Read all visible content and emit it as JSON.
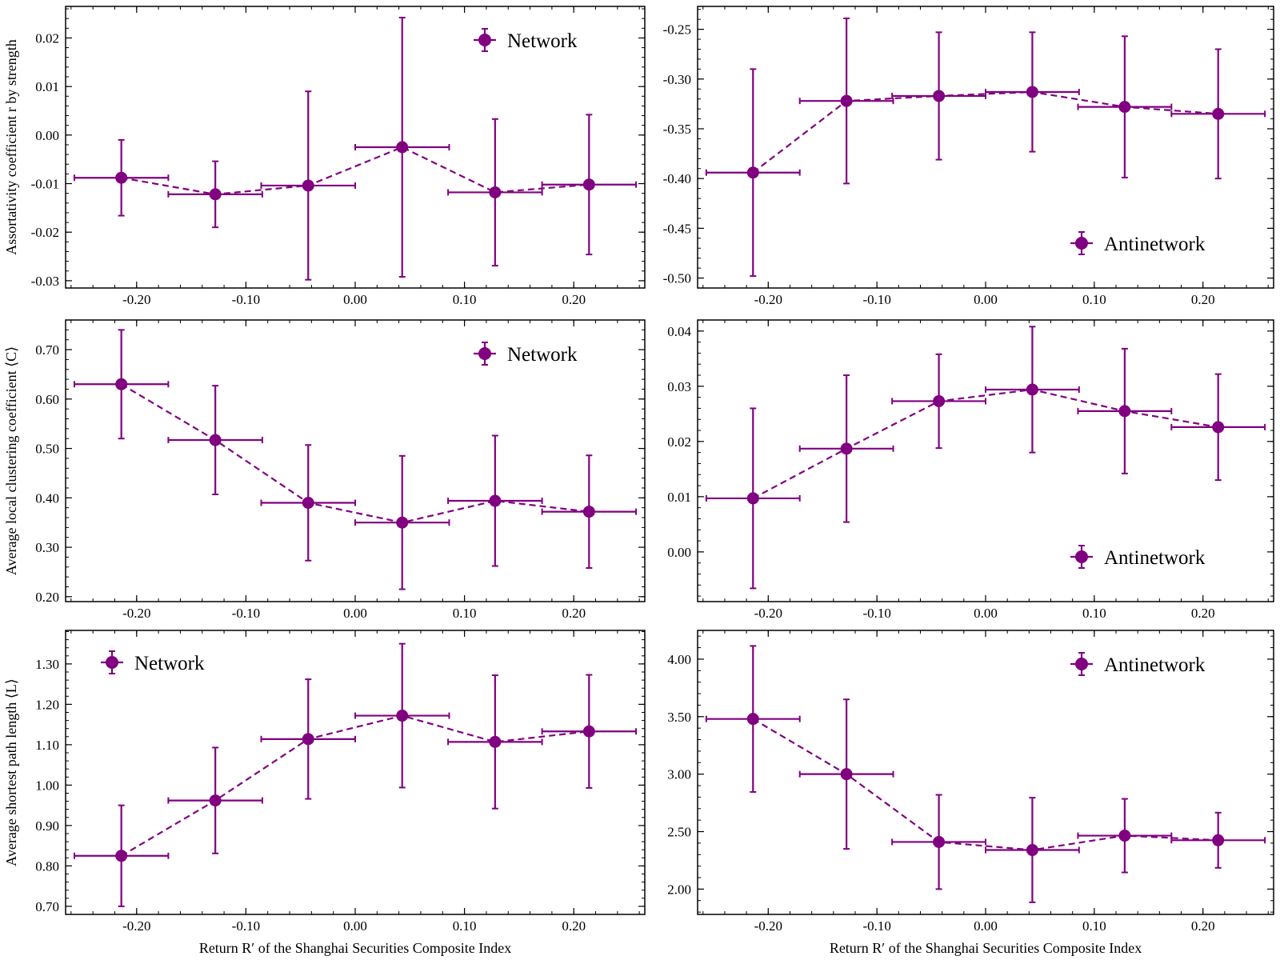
{
  "figure": {
    "series_color": "#800080",
    "shared_xlabel": "Return R′ of the Shanghai Securities Composite Index"
  },
  "chart_data": [
    {
      "type": "errorbar-line",
      "panel": "top-left",
      "ylabel": "Assortativity coefficient r by strength",
      "xlabel": "",
      "legend": "Network",
      "legend_position": "top-right",
      "xlim": [
        -0.265,
        0.265
      ],
      "ylim": [
        -0.0315,
        0.0265
      ],
      "xticks": [
        -0.2,
        -0.1,
        0.0,
        0.1,
        0.2
      ],
      "xtick_labels": [
        "-0.20",
        "-0.10",
        "0.00",
        "0.10",
        "0.20"
      ],
      "yticks": [
        -0.03,
        -0.02,
        -0.01,
        0.0,
        0.01,
        0.02
      ],
      "ytick_labels": [
        "-0.03",
        "-0.02",
        "-0.01",
        "0.00",
        "0.01",
        "0.02"
      ],
      "x": [
        -0.214,
        -0.128,
        -0.043,
        0.043,
        0.128,
        0.214
      ],
      "y": [
        -0.0088,
        -0.0122,
        -0.0104,
        -0.0025,
        -0.0118,
        -0.0102
      ],
      "xerr": [
        0.043,
        0.043,
        0.043,
        0.043,
        0.043,
        0.043
      ],
      "yerr_low": [
        0.0078,
        0.0068,
        0.0194,
        0.0267,
        0.0151,
        0.0144
      ],
      "yerr_high": [
        0.0078,
        0.0068,
        0.0194,
        0.0267,
        0.0151,
        0.0144
      ]
    },
    {
      "type": "errorbar-line",
      "panel": "top-right",
      "ylabel": "",
      "xlabel": "",
      "legend": "Antinetwork",
      "legend_position": "bottom-right",
      "xlim": [
        -0.265,
        0.265
      ],
      "ylim": [
        -0.51,
        -0.227
      ],
      "xticks": [
        -0.2,
        -0.1,
        0.0,
        0.1,
        0.2
      ],
      "xtick_labels": [
        "-0.20",
        "-0.10",
        "0.00",
        "0.10",
        "0.20"
      ],
      "yticks": [
        -0.5,
        -0.45,
        -0.4,
        -0.35,
        -0.3,
        -0.25
      ],
      "ytick_labels": [
        "-0.50",
        "-0.45",
        "-0.40",
        "-0.35",
        "-0.30",
        "-0.25"
      ],
      "x": [
        -0.214,
        -0.128,
        -0.043,
        0.043,
        0.128,
        0.214
      ],
      "y": [
        -0.394,
        -0.322,
        -0.317,
        -0.313,
        -0.328,
        -0.335
      ],
      "xerr": [
        0.043,
        0.043,
        0.043,
        0.043,
        0.043,
        0.043
      ],
      "yerr_low": [
        0.104,
        0.083,
        0.064,
        0.06,
        0.071,
        0.065
      ],
      "yerr_high": [
        0.104,
        0.083,
        0.064,
        0.06,
        0.071,
        0.065
      ]
    },
    {
      "type": "errorbar-line",
      "panel": "middle-left",
      "ylabel": "Average local clustering coefficient ⟨C⟩",
      "xlabel": "",
      "legend": "Network",
      "legend_position": "top-right",
      "xlim": [
        -0.265,
        0.265
      ],
      "ylim": [
        0.19,
        0.76
      ],
      "xticks": [
        -0.2,
        -0.1,
        0.0,
        0.1,
        0.2
      ],
      "xtick_labels": [
        "-0.20",
        "-0.10",
        "0.00",
        "0.10",
        "0.20"
      ],
      "yticks": [
        0.2,
        0.3,
        0.4,
        0.5,
        0.6,
        0.7
      ],
      "ytick_labels": [
        "0.20",
        "0.30",
        "0.40",
        "0.50",
        "0.60",
        "0.70"
      ],
      "x": [
        -0.214,
        -0.128,
        -0.043,
        0.043,
        0.128,
        0.214
      ],
      "y": [
        0.63,
        0.517,
        0.39,
        0.35,
        0.394,
        0.372
      ],
      "xerr": [
        0.043,
        0.043,
        0.043,
        0.043,
        0.043,
        0.043
      ],
      "yerr_low": [
        0.11,
        0.11,
        0.117,
        0.135,
        0.132,
        0.114
      ],
      "yerr_high": [
        0.11,
        0.11,
        0.117,
        0.135,
        0.132,
        0.114
      ]
    },
    {
      "type": "errorbar-line",
      "panel": "middle-right",
      "ylabel": "",
      "xlabel": "",
      "legend": "Antinetwork",
      "legend_position": "bottom-right",
      "xlim": [
        -0.265,
        0.265
      ],
      "ylim": [
        -0.009,
        0.042
      ],
      "xticks": [
        -0.2,
        -0.1,
        0.0,
        0.1,
        0.2
      ],
      "xtick_labels": [
        "-0.20",
        "-0.10",
        "0.00",
        "0.10",
        "0.20"
      ],
      "yticks": [
        0.0,
        0.01,
        0.02,
        0.03,
        0.04
      ],
      "ytick_labels": [
        "0.00",
        "0.01",
        "0.02",
        "0.03",
        "0.04"
      ],
      "x": [
        -0.214,
        -0.128,
        -0.043,
        0.043,
        0.128,
        0.214
      ],
      "y": [
        0.0097,
        0.0187,
        0.0273,
        0.0294,
        0.0255,
        0.0226
      ],
      "xerr": [
        0.043,
        0.043,
        0.043,
        0.043,
        0.043,
        0.043
      ],
      "yerr_low": [
        0.0163,
        0.0133,
        0.0085,
        0.0114,
        0.0113,
        0.0096
      ],
      "yerr_high": [
        0.0163,
        0.0133,
        0.0085,
        0.0114,
        0.0113,
        0.0096
      ]
    },
    {
      "type": "errorbar-line",
      "panel": "bottom-left",
      "ylabel": "Average shortest path length ⟨L⟩",
      "xlabel": "Return R′ of the Shanghai Securities Composite Index",
      "legend": "Network",
      "legend_position": "top-left",
      "xlim": [
        -0.265,
        0.265
      ],
      "ylim": [
        0.68,
        1.383
      ],
      "xticks": [
        -0.2,
        -0.1,
        0.0,
        0.1,
        0.2
      ],
      "xtick_labels": [
        "-0.20",
        "-0.10",
        "0.00",
        "0.10",
        "0.20"
      ],
      "yticks": [
        0.7,
        0.8,
        0.9,
        1.0,
        1.1,
        1.2,
        1.3
      ],
      "ytick_labels": [
        "0.70",
        "0.80",
        "0.90",
        "1.00",
        "1.10",
        "1.20",
        "1.30"
      ],
      "x": [
        -0.214,
        -0.128,
        -0.043,
        0.043,
        0.128,
        0.214
      ],
      "y": [
        0.825,
        0.962,
        1.114,
        1.172,
        1.107,
        1.133
      ],
      "xerr": [
        0.043,
        0.043,
        0.043,
        0.043,
        0.043,
        0.043
      ],
      "yerr_low": [
        0.125,
        0.131,
        0.148,
        0.178,
        0.165,
        0.14
      ],
      "yerr_high": [
        0.125,
        0.131,
        0.148,
        0.178,
        0.165,
        0.14
      ]
    },
    {
      "type": "errorbar-line",
      "panel": "bottom-right",
      "ylabel": "",
      "xlabel": "Return R′ of the Shanghai Securities Composite Index",
      "legend": "Antinetwork",
      "legend_position": "top-right",
      "xlim": [
        -0.265,
        0.265
      ],
      "ylim": [
        1.78,
        4.25
      ],
      "xticks": [
        -0.2,
        -0.1,
        0.0,
        0.1,
        0.2
      ],
      "xtick_labels": [
        "-0.20",
        "-0.10",
        "0.00",
        "0.10",
        "0.20"
      ],
      "yticks": [
        2.0,
        2.5,
        3.0,
        3.5,
        4.0
      ],
      "ytick_labels": [
        "2.00",
        "2.50",
        "3.00",
        "3.50",
        "4.00"
      ],
      "x": [
        -0.214,
        -0.128,
        -0.043,
        0.043,
        0.128,
        0.214
      ],
      "y": [
        3.48,
        3.0,
        2.41,
        2.34,
        2.465,
        2.425
      ],
      "xerr": [
        0.043,
        0.043,
        0.043,
        0.043,
        0.043,
        0.043
      ],
      "yerr_low": [
        0.635,
        0.65,
        0.41,
        0.455,
        0.32,
        0.24
      ],
      "yerr_high": [
        0.635,
        0.65,
        0.41,
        0.455,
        0.32,
        0.24
      ]
    }
  ]
}
